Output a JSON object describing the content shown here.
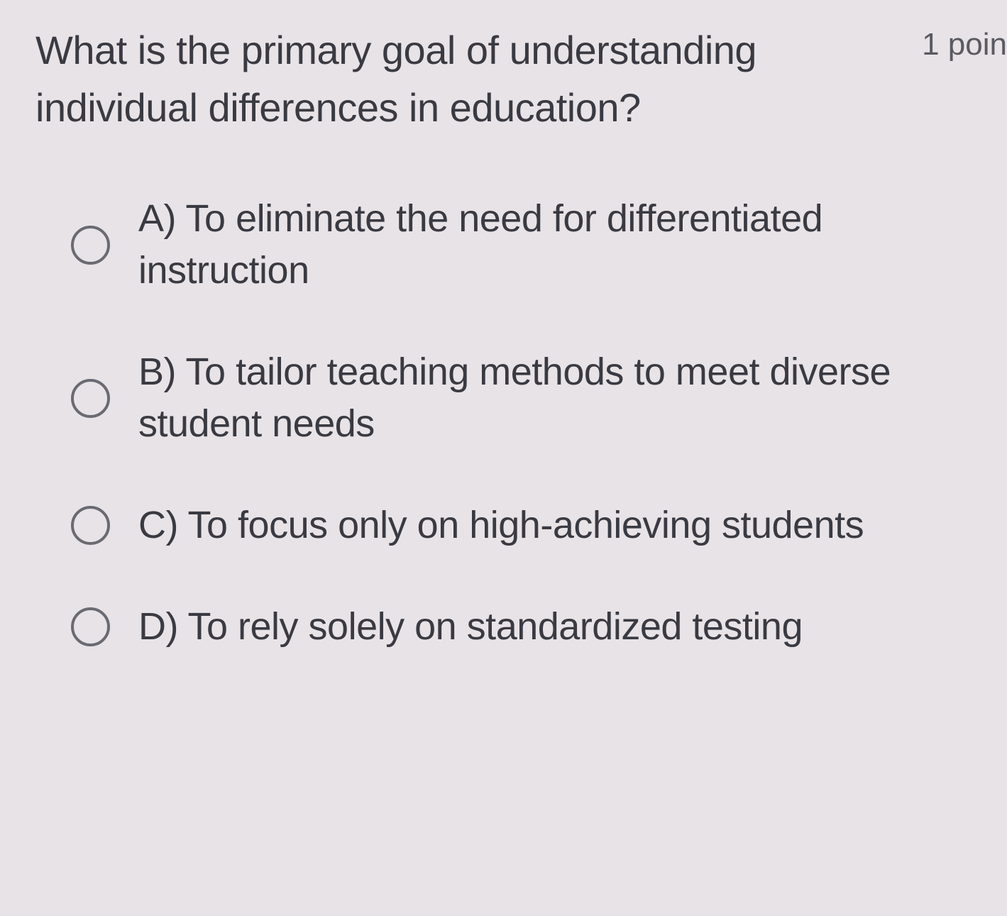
{
  "question": {
    "text": "What is the primary goal of understanding individual differences in education?",
    "points": "1 poin"
  },
  "options": [
    {
      "label": "A) To eliminate the need for differentiated instruction"
    },
    {
      "label": "B) To tailor teaching methods to meet diverse student needs"
    },
    {
      "label": "C) To focus only on high-achieving students"
    },
    {
      "label": "D) To rely solely on standardized testing"
    }
  ],
  "colors": {
    "background": "#e8e3e6",
    "text": "#3a3a42",
    "points_text": "#5a5a62",
    "radio_border": "#6a6a72"
  },
  "typography": {
    "question_fontsize": 56,
    "option_fontsize": 54,
    "points_fontsize": 44
  }
}
